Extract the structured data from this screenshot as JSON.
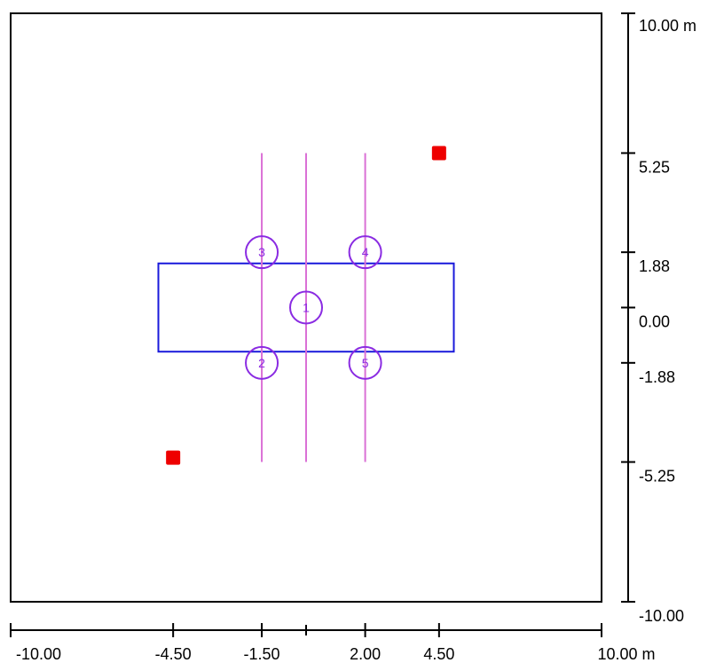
{
  "drawing": {
    "x_axis": {
      "ticks": [
        {
          "value": -10,
          "label": "-10.00"
        },
        {
          "value": -4.5,
          "label": "-4.50"
        },
        {
          "value": -1.5,
          "label": "-1.50"
        },
        {
          "value": 2,
          "label": "2.00"
        },
        {
          "value": 4.5,
          "label": "4.50"
        },
        {
          "value": 10,
          "label": "10.00 m"
        }
      ],
      "minor_ticks": [
        0
      ]
    },
    "y_axis": {
      "ticks": [
        {
          "value": 10,
          "label": "10.00 m"
        },
        {
          "value": 5.25,
          "label": "5.25"
        },
        {
          "value": 1.88,
          "label": "1.88"
        },
        {
          "value": 0,
          "label": "0.00"
        },
        {
          "value": -1.88,
          "label": "-1.88"
        },
        {
          "value": -5.25,
          "label": "-5.25"
        },
        {
          "value": -10,
          "label": "-10.00"
        }
      ]
    },
    "domain": {
      "xmin": -10,
      "xmax": 10,
      "ymin": -10,
      "ymax": 10
    },
    "footing": {
      "xmin": -5,
      "xmax": 5,
      "ymin": -1.5,
      "ymax": 1.5,
      "color": "#1a1adb"
    },
    "lines": [
      {
        "x": -1.5,
        "y1": 5.25,
        "y2": -5.25
      },
      {
        "x": 0,
        "y1": 5.25,
        "y2": -5.25
      },
      {
        "x": 2,
        "y1": 5.25,
        "y2": -5.25
      }
    ],
    "line_color": "#da70d6",
    "points": [
      {
        "label": "1",
        "x": 0,
        "y": 0
      },
      {
        "label": "2",
        "x": -1.5,
        "y": -1.88
      },
      {
        "label": "3",
        "x": -1.5,
        "y": 1.88
      },
      {
        "label": "4",
        "x": 2,
        "y": 1.88
      },
      {
        "label": "5",
        "x": 2,
        "y": -1.88
      }
    ],
    "point_color": "#8a2be2",
    "red_markers": [
      {
        "x": 4.5,
        "y": 5.25
      },
      {
        "x": -4.5,
        "y": -5.1
      }
    ],
    "red_color": "#ee0000"
  }
}
